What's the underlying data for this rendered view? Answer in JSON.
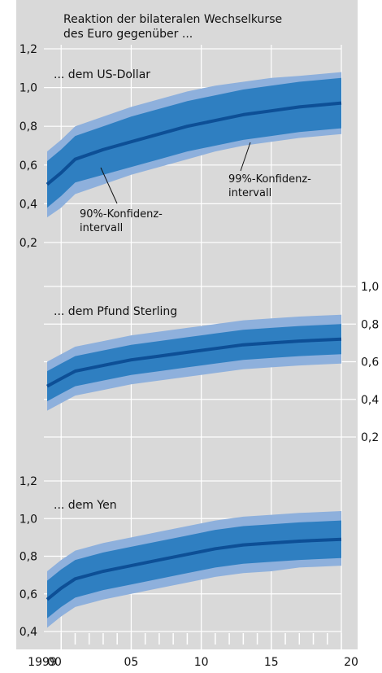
{
  "title_lines": [
    "Reaktion der bilateralen Wechselkurse",
    "des Euro gegenüber ..."
  ],
  "annotations": {
    "ci99": [
      "99%-Konfidenz-",
      "intervall"
    ],
    "ci90": [
      "90%-Konfidenz-",
      "intervall"
    ]
  },
  "colors": {
    "background": "#d9d9d9",
    "ci99_band": "#8eb0dc",
    "ci90_band": "#2f7fc1",
    "center_line": "#0d4f96",
    "grid": "#ffffff",
    "text": "#111111",
    "frame": "#ffffff"
  },
  "x_ticks": [
    {
      "value": 1999,
      "label": "1999"
    },
    {
      "value": 2000,
      "label": "00"
    },
    {
      "value": 2005,
      "label": "05"
    },
    {
      "value": 2010,
      "label": "10"
    },
    {
      "value": 2015,
      "label": "15"
    },
    {
      "value": 2020,
      "label": "20"
    }
  ],
  "chart_data": [
    {
      "type": "area",
      "label": "... dem US-Dollar",
      "axis_side": "left",
      "ylim": [
        0.2,
        1.2
      ],
      "yticks": [
        0.2,
        0.4,
        0.6,
        0.8,
        1.0,
        1.2
      ],
      "ytick_labels": [
        "0,2",
        "0,4",
        "0,6",
        "0,8",
        "1,0",
        "1,2"
      ],
      "x": [
        1999,
        2000,
        2001,
        2003,
        2005,
        2007,
        2009,
        2011,
        2013,
        2015,
        2017,
        2020
      ],
      "center": [
        0.5,
        0.56,
        0.63,
        0.68,
        0.72,
        0.76,
        0.8,
        0.83,
        0.86,
        0.88,
        0.9,
        0.92
      ],
      "ci90_lower": [
        0.38,
        0.44,
        0.51,
        0.55,
        0.59,
        0.63,
        0.67,
        0.7,
        0.73,
        0.75,
        0.77,
        0.79
      ],
      "ci90_upper": [
        0.62,
        0.68,
        0.75,
        0.8,
        0.85,
        0.89,
        0.93,
        0.96,
        0.99,
        1.01,
        1.03,
        1.05
      ],
      "ci99_lower": [
        0.33,
        0.38,
        0.45,
        0.5,
        0.55,
        0.59,
        0.63,
        0.67,
        0.7,
        0.72,
        0.74,
        0.76
      ],
      "ci99_upper": [
        0.67,
        0.73,
        0.8,
        0.85,
        0.9,
        0.94,
        0.98,
        1.01,
        1.03,
        1.05,
        1.06,
        1.08
      ]
    },
    {
      "type": "area",
      "label": "... dem Pfund Sterling",
      "axis_side": "right",
      "ylim": [
        0.2,
        1.0
      ],
      "yticks": [
        0.2,
        0.4,
        0.6,
        0.8,
        1.0
      ],
      "ytick_labels": [
        "0,2",
        "0,4",
        "0,6",
        "0,8",
        "1,0"
      ],
      "x": [
        1999,
        2000,
        2001,
        2003,
        2005,
        2007,
        2009,
        2011,
        2013,
        2015,
        2017,
        2020
      ],
      "center": [
        0.47,
        0.51,
        0.55,
        0.58,
        0.61,
        0.63,
        0.65,
        0.67,
        0.69,
        0.7,
        0.71,
        0.72
      ],
      "ci90_lower": [
        0.39,
        0.43,
        0.47,
        0.5,
        0.53,
        0.55,
        0.57,
        0.59,
        0.61,
        0.62,
        0.63,
        0.64
      ],
      "ci90_upper": [
        0.55,
        0.59,
        0.63,
        0.66,
        0.69,
        0.71,
        0.73,
        0.75,
        0.77,
        0.78,
        0.79,
        0.8
      ],
      "ci99_lower": [
        0.34,
        0.38,
        0.42,
        0.45,
        0.48,
        0.5,
        0.52,
        0.54,
        0.56,
        0.57,
        0.58,
        0.59
      ],
      "ci99_upper": [
        0.6,
        0.64,
        0.68,
        0.71,
        0.74,
        0.76,
        0.78,
        0.8,
        0.82,
        0.83,
        0.84,
        0.85
      ]
    },
    {
      "type": "area",
      "label": "... dem Yen",
      "axis_side": "left",
      "ylim": [
        0.4,
        1.2
      ],
      "yticks": [
        0.4,
        0.6,
        0.8,
        1.0,
        1.2
      ],
      "ytick_labels": [
        "0,4",
        "0,6",
        "0,8",
        "1,0",
        "1,2"
      ],
      "x": [
        1999,
        2000,
        2001,
        2003,
        2005,
        2007,
        2009,
        2011,
        2013,
        2015,
        2017,
        2020
      ],
      "center": [
        0.57,
        0.63,
        0.68,
        0.72,
        0.75,
        0.78,
        0.81,
        0.84,
        0.86,
        0.87,
        0.88,
        0.89
      ],
      "ci90_lower": [
        0.47,
        0.53,
        0.58,
        0.62,
        0.65,
        0.68,
        0.71,
        0.74,
        0.76,
        0.77,
        0.78,
        0.79
      ],
      "ci90_upper": [
        0.67,
        0.73,
        0.78,
        0.82,
        0.85,
        0.88,
        0.91,
        0.94,
        0.96,
        0.97,
        0.98,
        0.99
      ],
      "ci99_lower": [
        0.42,
        0.48,
        0.53,
        0.57,
        0.6,
        0.63,
        0.66,
        0.69,
        0.71,
        0.72,
        0.74,
        0.75
      ],
      "ci99_upper": [
        0.72,
        0.78,
        0.83,
        0.87,
        0.9,
        0.93,
        0.96,
        0.99,
        1.01,
        1.02,
        1.03,
        1.04
      ]
    }
  ]
}
